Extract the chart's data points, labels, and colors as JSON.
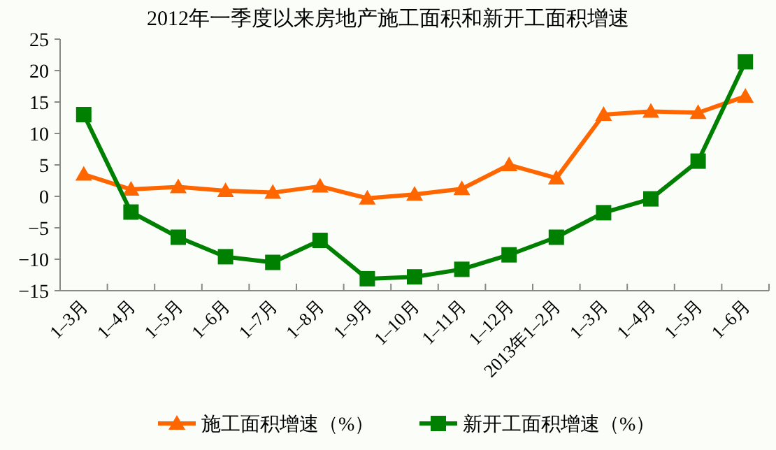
{
  "chart_data": {
    "type": "line",
    "title": "2012年一季度以来房地产施工面积和新开工面积增速",
    "categories": [
      "1–3月",
      "1–4月",
      "1–5月",
      "1–6月",
      "1–7月",
      "1–8月",
      "1–9月",
      "1–10月",
      "1–11月",
      "1–12月",
      "2013年1–2月",
      "1–3月",
      "1–4月",
      "1–5月",
      "1–6月"
    ],
    "series": [
      {
        "name": "施工面积增速（%）",
        "color": "#ff6600",
        "marker": "triangle",
        "values": [
          3.5,
          1.1,
          1.5,
          0.9,
          0.6,
          1.6,
          -0.3,
          0.3,
          1.2,
          5.0,
          2.9,
          13.0,
          13.5,
          13.3,
          15.9
        ]
      },
      {
        "name": "新开工面积增速（%）",
        "color": "#008000",
        "marker": "square",
        "values": [
          13.0,
          -2.5,
          -6.5,
          -9.6,
          -10.5,
          -7.0,
          -13.1,
          -12.8,
          -11.6,
          -9.3,
          -6.5,
          -2.6,
          -0.4,
          5.6,
          21.4
        ]
      }
    ],
    "ylim": [
      -15,
      25
    ],
    "yticks": [
      -15,
      -10,
      -5,
      0,
      5,
      10,
      15,
      20,
      25
    ],
    "grid": false,
    "legend": "bottom"
  }
}
